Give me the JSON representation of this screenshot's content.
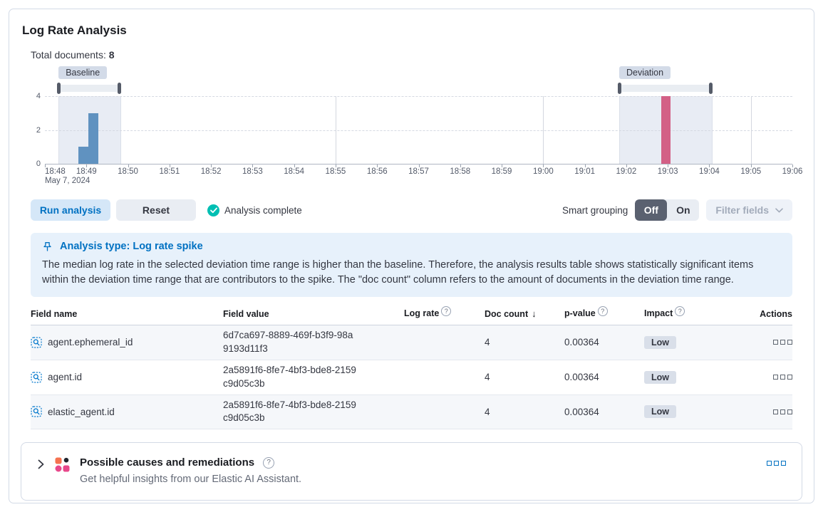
{
  "page": {
    "title": "Log Rate Analysis"
  },
  "summary": {
    "label": "Total documents:",
    "value": "8"
  },
  "icons": {
    "help": "?",
    "sort_desc": "↓"
  },
  "chart_data": {
    "type": "bar",
    "title": "Document count histogram with baseline and deviation time ranges",
    "x_ticks": [
      "18:48",
      "18:49",
      "18:50",
      "18:51",
      "18:52",
      "18:53",
      "18:54",
      "18:55",
      "18:56",
      "18:57",
      "18:58",
      "18:59",
      "19:00",
      "19:01",
      "19:02",
      "19:03",
      "19:04",
      "19:05",
      "19:06"
    ],
    "x_date_label": "May 7, 2024",
    "x_range_minutes": [
      0,
      18
    ],
    "y_ticks": [
      0,
      2,
      4
    ],
    "ylim": [
      0,
      4
    ],
    "grid": {
      "h_dashed_values": [
        2,
        4
      ],
      "v_line_minutes": [
        7,
        12,
        17
      ]
    },
    "brushes": [
      {
        "name": "baseline",
        "label": "Baseline",
        "start_min": 0.33,
        "end_min": 1.8
      },
      {
        "name": "deviation",
        "label": "Deviation",
        "start_min": 13.83,
        "end_min": 16.04
      }
    ],
    "series": [
      {
        "name": "baseline",
        "color": "#6092C0",
        "bars": [
          {
            "start_min": 0.81,
            "end_min": 1.04,
            "value": 1
          },
          {
            "start_min": 1.05,
            "end_min": 1.28,
            "value": 3
          }
        ]
      },
      {
        "name": "deviation",
        "color": "#D36086",
        "bars": [
          {
            "start_min": 14.84,
            "end_min": 15.06,
            "value": 4
          }
        ]
      }
    ]
  },
  "controls": {
    "run_button": "Run analysis",
    "reset_button": "Reset",
    "status": "Analysis complete",
    "smart_grouping_label": "Smart grouping",
    "toggle_off": "Off",
    "toggle_on": "On",
    "filter_fields": "Filter fields"
  },
  "callout": {
    "title": "Analysis type: Log rate spike",
    "body": "The median log rate in the selected deviation time range is higher than the baseline. Therefore, the analysis results table shows statistically significant items within the deviation time range that are contributors to the spike. The \"doc count\" column refers to the amount of documents in the deviation time range."
  },
  "table": {
    "columns": [
      "Field name",
      "Field value",
      "Log rate",
      "Doc count",
      "p-value",
      "Impact",
      "Actions"
    ],
    "sorted_column": "Doc count",
    "rows": [
      {
        "field_name": "agent.ephemeral_id",
        "field_value": "6d7ca697-8889-469f-b3f9-98a9193d11f3",
        "doc_count": "4",
        "p_value": "0.00364",
        "impact": "Low"
      },
      {
        "field_name": "agent.id",
        "field_value": "2a5891f6-8fe7-4bf3-bde8-2159c9d05c3b",
        "doc_count": "4",
        "p_value": "0.00364",
        "impact": "Low"
      },
      {
        "field_name": "elastic_agent.id",
        "field_value": "2a5891f6-8fe7-4bf3-bde8-2159c9d05c3b",
        "doc_count": "4",
        "p_value": "0.00364",
        "impact": "Low"
      }
    ]
  },
  "footer": {
    "title": "Possible causes and remediations",
    "subtitle": "Get helpful insights from our Elastic AI Assistant."
  },
  "colors": {
    "accent_blue": "#0071C2",
    "bar_blue": "#6092C0",
    "bar_pink": "#D36086",
    "success_teal": "#00BFB3"
  }
}
